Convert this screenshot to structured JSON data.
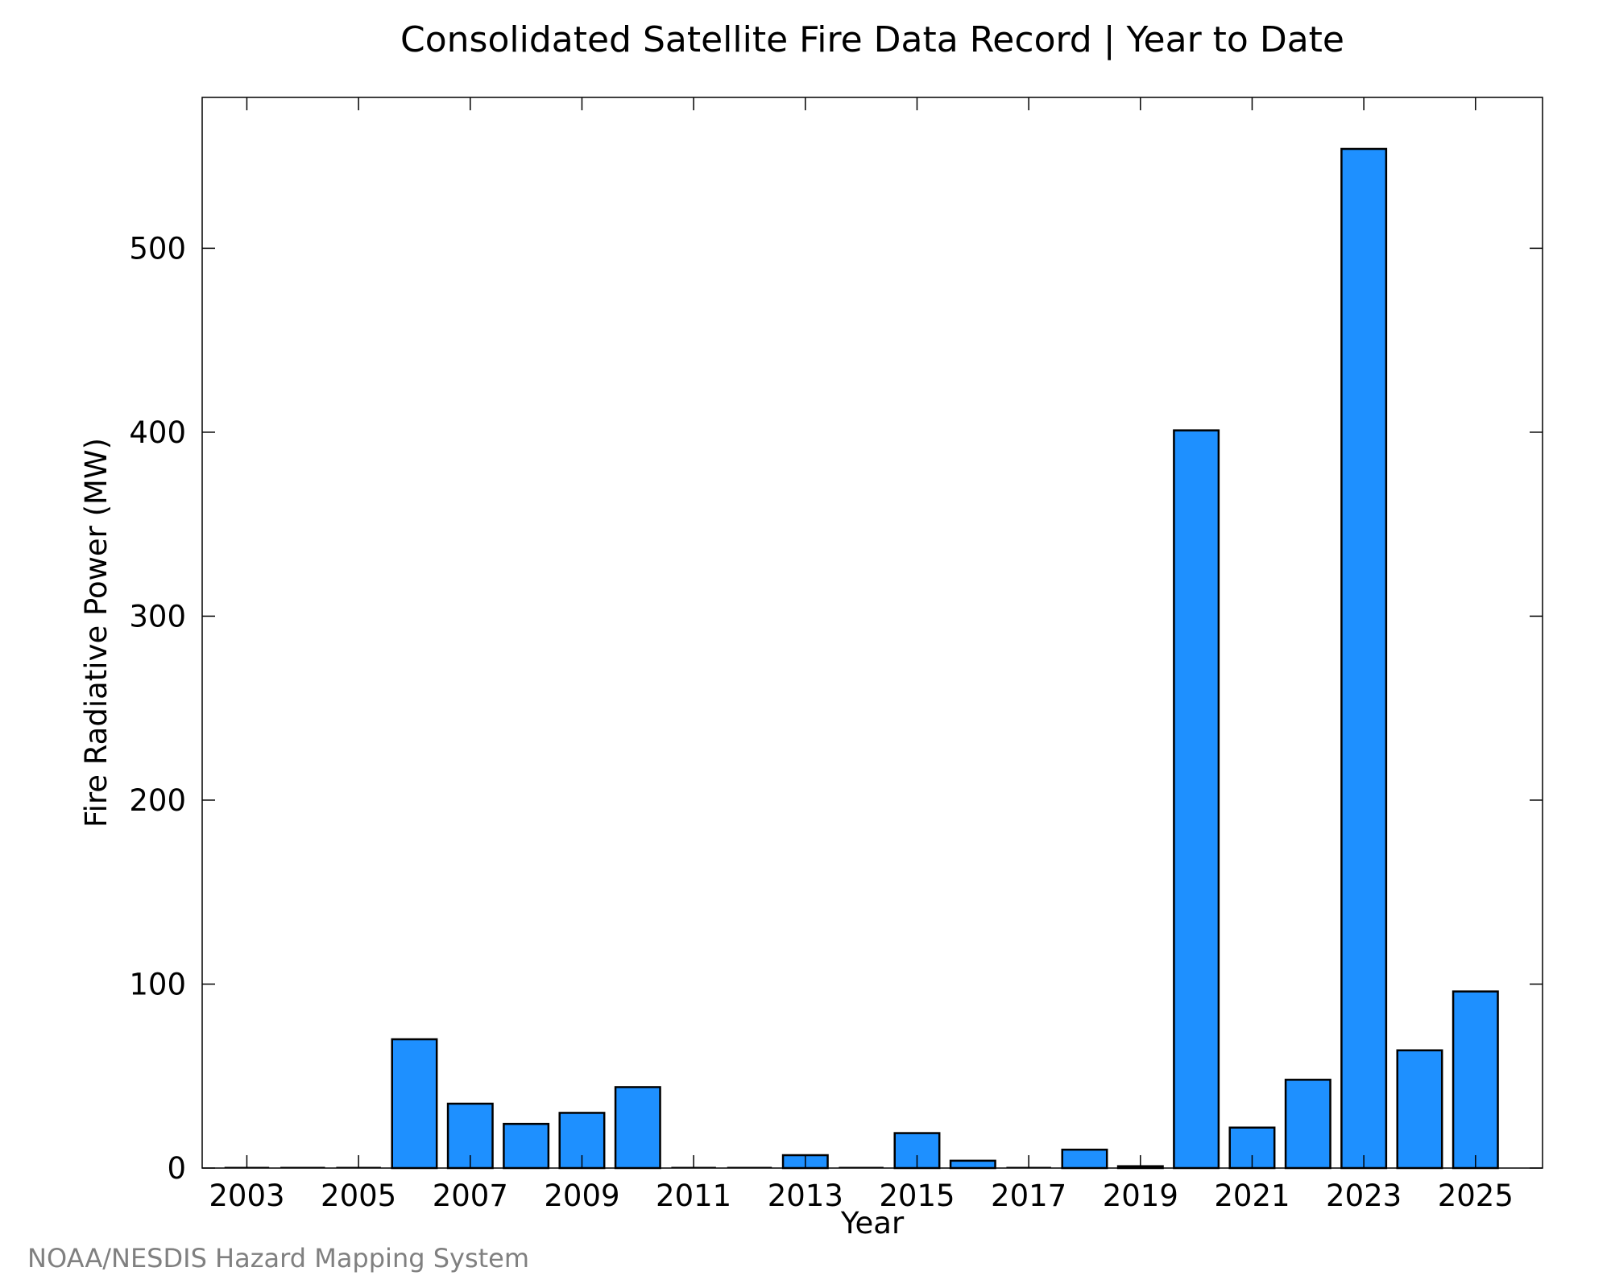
{
  "chart_data": {
    "type": "bar",
    "title": "Consolidated Satellite Fire Data Record | Year to Date",
    "xlabel": "Year",
    "ylabel": "Fire Radiative Power (MW)",
    "credit": "NOAA/NESDIS Hazard Mapping System",
    "categories": [
      2003,
      2004,
      2005,
      2006,
      2007,
      2008,
      2009,
      2010,
      2011,
      2012,
      2013,
      2014,
      2015,
      2016,
      2017,
      2018,
      2019,
      2020,
      2021,
      2022,
      2023,
      2024,
      2025
    ],
    "values": [
      0,
      0,
      0,
      70,
      35,
      24,
      30,
      44,
      0,
      0,
      7,
      0,
      19,
      4,
      0,
      10,
      1,
      401,
      22,
      48,
      554,
      64,
      96
    ],
    "x_tick_labels": [
      "2003",
      "2005",
      "2007",
      "2009",
      "2011",
      "2013",
      "2015",
      "2017",
      "2019",
      "2021",
      "2023",
      "2025"
    ],
    "x_tick_values": [
      2003,
      2005,
      2007,
      2009,
      2011,
      2013,
      2015,
      2017,
      2019,
      2021,
      2023,
      2025
    ],
    "y_tick_labels": [
      "0",
      "100",
      "200",
      "300",
      "400",
      "500"
    ],
    "y_tick_values": [
      0,
      100,
      200,
      300,
      400,
      500
    ],
    "xlim": [
      2002.2,
      2026.2
    ],
    "ylim": [
      0,
      582
    ],
    "grid": false,
    "legend": "none",
    "colors": {
      "bar_fill": "#1E90FF",
      "bar_stroke": "#000000",
      "axis": "#000000",
      "credit": "#808080"
    }
  }
}
